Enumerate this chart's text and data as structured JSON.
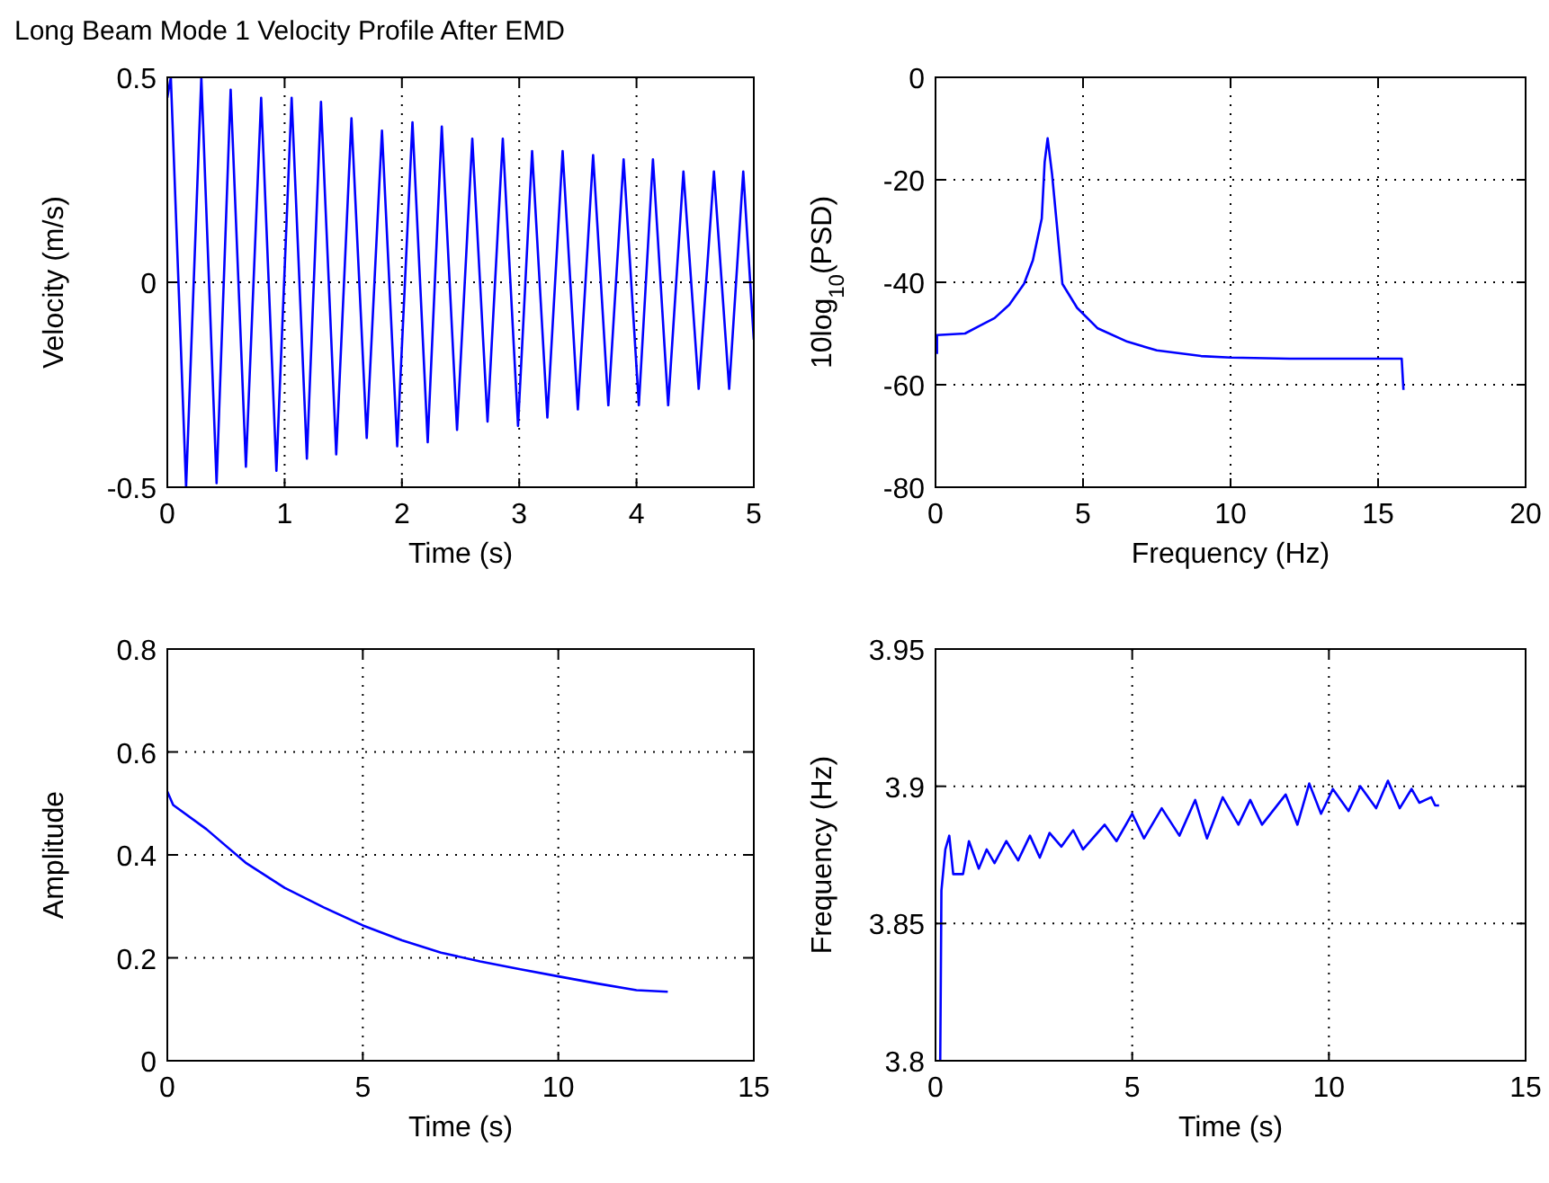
{
  "chart_data": [
    {
      "type": "line",
      "title": "Long Beam Mode 1 Velocity Profile After EMD",
      "xlabel": "Time (s)",
      "ylabel": "Velocity (m/s)",
      "xlim": [
        0,
        5
      ],
      "xticks": [
        0,
        1,
        2,
        3,
        4,
        5
      ],
      "ylim": [
        -0.5,
        0.5
      ],
      "yticks": [
        -0.5,
        0,
        0.5
      ],
      "grid": true,
      "series": [
        {
          "color": "#0000ff",
          "x": [
            0,
            0.03,
            0.16,
            0.29,
            0.42,
            0.54,
            0.67,
            0.8,
            0.93,
            1.06,
            1.19,
            1.31,
            1.44,
            1.57,
            1.7,
            1.83,
            1.96,
            2.09,
            2.22,
            2.34,
            2.47,
            2.6,
            2.73,
            2.86,
            2.99,
            3.11,
            3.24,
            3.37,
            3.5,
            3.63,
            3.76,
            3.89,
            4.02,
            4.14,
            4.27,
            4.4,
            4.53,
            4.66,
            4.79,
            4.91,
            5
          ],
          "values": [
            0.45,
            0.5,
            -0.5,
            0.5,
            -0.49,
            0.47,
            -0.45,
            0.45,
            -0.46,
            0.45,
            -0.43,
            0.44,
            -0.42,
            0.4,
            -0.38,
            0.37,
            -0.4,
            0.39,
            -0.39,
            0.38,
            -0.36,
            0.35,
            -0.34,
            0.35,
            -0.35,
            0.32,
            -0.33,
            0.32,
            -0.31,
            0.31,
            -0.3,
            0.3,
            -0.3,
            0.3,
            -0.3,
            0.27,
            -0.26,
            0.27,
            -0.26,
            0.27,
            -0.14
          ]
        }
      ]
    },
    {
      "type": "line",
      "xlabel": "Frequency (Hz)",
      "ylabel": "10log$_{10}$(PSD)",
      "xlim": [
        0,
        20
      ],
      "xticks": [
        0,
        5,
        10,
        15,
        20
      ],
      "ylim": [
        -80,
        0
      ],
      "yticks": [
        -80,
        -60,
        -40,
        -20,
        0
      ],
      "grid": true,
      "series": [
        {
          "color": "#0000ff",
          "x": [
            0.05,
            0.05,
            1,
            1.5,
            2,
            2.5,
            3,
            3.3,
            3.6,
            3.7,
            3.8,
            3.95,
            4.1,
            4.3,
            4.8,
            5.5,
            6.5,
            7.5,
            9,
            10,
            12,
            15,
            15.8,
            15.86
          ],
          "values": [
            -54,
            -50.3,
            -50,
            -48.5,
            -47,
            -44.4,
            -40.3,
            -35.7,
            -27.6,
            -16.5,
            -11.9,
            -18.9,
            -28,
            -40.3,
            -45,
            -49,
            -51.6,
            -53.3,
            -54.4,
            -54.7,
            -54.9,
            -54.9,
            -54.9,
            -61
          ]
        }
      ]
    },
    {
      "type": "line",
      "xlabel": "Time (s)",
      "ylabel": "Amplitude",
      "xlim": [
        0,
        15
      ],
      "xticks": [
        0,
        5,
        10,
        15
      ],
      "ylim": [
        0,
        0.8
      ],
      "yticks": [
        0,
        0.2,
        0.4,
        0.6,
        0.8
      ],
      "grid": true,
      "series": [
        {
          "color": "#0000ff",
          "x": [
            0,
            0.15,
            1,
            2,
            3,
            4,
            5,
            6,
            7,
            8,
            9,
            10,
            11,
            12,
            12.8
          ],
          "values": [
            0.523,
            0.497,
            0.45,
            0.385,
            0.336,
            0.298,
            0.263,
            0.234,
            0.21,
            0.193,
            0.178,
            0.164,
            0.15,
            0.137,
            0.134
          ]
        }
      ]
    },
    {
      "type": "line",
      "xlabel": "Time (s)",
      "ylabel": "Frequency (Hz)",
      "xlim": [
        0,
        15
      ],
      "xticks": [
        0,
        5,
        10,
        15
      ],
      "ylim": [
        3.8,
        3.95
      ],
      "yticks": [
        3.8,
        3.85,
        3.9,
        3.95
      ],
      "grid": true,
      "series": [
        {
          "color": "#0000ff",
          "x": [
            0.12,
            0.15,
            0.25,
            0.35,
            0.45,
            0.7,
            0.85,
            1.1,
            1.3,
            1.5,
            1.8,
            2.1,
            2.4,
            2.65,
            2.9,
            3.2,
            3.5,
            3.75,
            4.3,
            4.6,
            5,
            5.3,
            5.75,
            6.2,
            6.6,
            6.9,
            7.3,
            7.7,
            8,
            8.3,
            8.9,
            9.2,
            9.5,
            9.8,
            10.1,
            10.5,
            10.8,
            11.2,
            11.5,
            11.8,
            12.1,
            12.3,
            12.6,
            12.7,
            12.8
          ],
          "values": [
            3.8,
            3.862,
            3.877,
            3.882,
            3.868,
            3.868,
            3.88,
            3.87,
            3.877,
            3.872,
            3.88,
            3.873,
            3.882,
            3.874,
            3.883,
            3.878,
            3.884,
            3.877,
            3.886,
            3.88,
            3.89,
            3.881,
            3.892,
            3.882,
            3.895,
            3.881,
            3.896,
            3.886,
            3.895,
            3.886,
            3.897,
            3.886,
            3.901,
            3.89,
            3.899,
            3.891,
            3.9,
            3.892,
            3.902,
            3.892,
            3.899,
            3.894,
            3.896,
            3.893,
            3.893
          ]
        }
      ]
    }
  ]
}
